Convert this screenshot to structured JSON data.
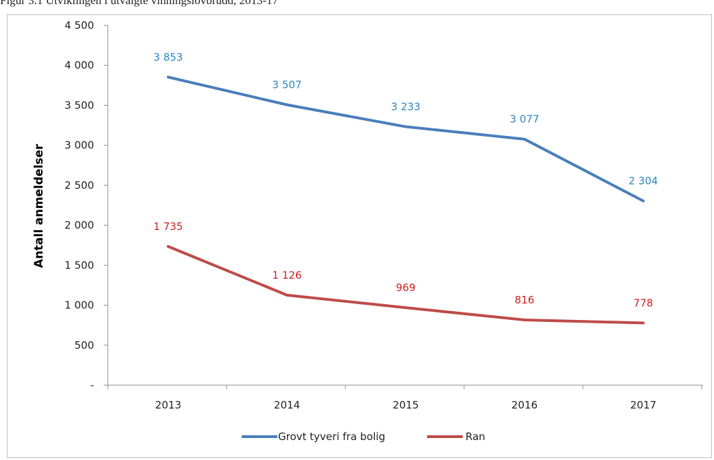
{
  "caption": "Figur 3.1 Utviklingen i utvalgte vinningslovbrudd, 2013-17",
  "chart_data": {
    "type": "line",
    "title": "",
    "xlabel": "",
    "ylabel": "Antall anmeldelser",
    "categories": [
      "2013",
      "2014",
      "2015",
      "2016",
      "2017"
    ],
    "ylim": [
      0,
      4500
    ],
    "y_ticks": [
      0,
      500,
      1000,
      1500,
      2000,
      2500,
      3000,
      3500,
      4000,
      4500
    ],
    "y_tick_labels": [
      "-",
      "500",
      "1 000",
      "1 500",
      "2 000",
      "2 500",
      "3 000",
      "3 500",
      "4 000",
      "4 500"
    ],
    "grid": false,
    "legend_position": "bottom",
    "series": [
      {
        "name": "Grovt tyveri fra bolig",
        "color": "#4a7ebb",
        "label_color": "#2e86c1",
        "values": [
          3853,
          3507,
          3233,
          3077,
          2304
        ],
        "data_labels": [
          "3 853",
          "3 507",
          "3 233",
          "3 077",
          "2 304"
        ]
      },
      {
        "name": "Ran",
        "color": "#be4b48",
        "label_color": "#d02020",
        "values": [
          1735,
          1126,
          969,
          816,
          778
        ],
        "data_labels": [
          "1 735",
          "1 126",
          "969",
          "816",
          "778"
        ]
      }
    ]
  }
}
